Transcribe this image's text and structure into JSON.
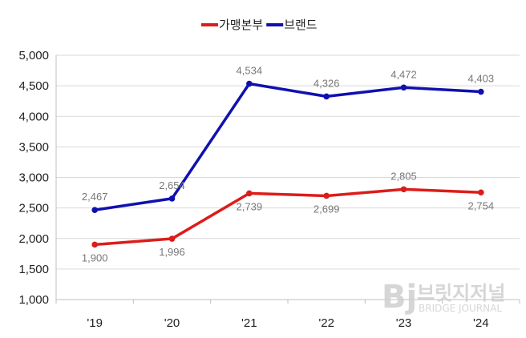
{
  "chart_data": {
    "type": "line",
    "categories": [
      "'19",
      "'20",
      "'21",
      "'22",
      "'23",
      "'24"
    ],
    "series": [
      {
        "name": "가맹본부",
        "color": "#dd1c1a",
        "values": [
          1900,
          1996,
          2739,
          2699,
          2805,
          2754
        ],
        "labels": [
          "1,900",
          "1,996",
          "2,739",
          "2,699",
          "2,805",
          "2,754"
        ]
      },
      {
        "name": "브랜드",
        "color": "#1010b0",
        "values": [
          2467,
          2654,
          4534,
          4326,
          4472,
          4403
        ],
        "labels": [
          "2,467",
          "2,654",
          "4,534",
          "4,326",
          "4,472",
          "4,403"
        ]
      }
    ],
    "yticks": [
      "1,000",
      "1,500",
      "2,000",
      "2,500",
      "3,000",
      "3,500",
      "4,000",
      "4,500",
      "5,000"
    ],
    "ylim": [
      1000,
      5000
    ],
    "grid": "horizontal",
    "legend": "top-center"
  },
  "watermark": {
    "logo": "Bj",
    "name_ko": "브릿지저널",
    "name_en": "BRIDGE JOURNAL"
  }
}
